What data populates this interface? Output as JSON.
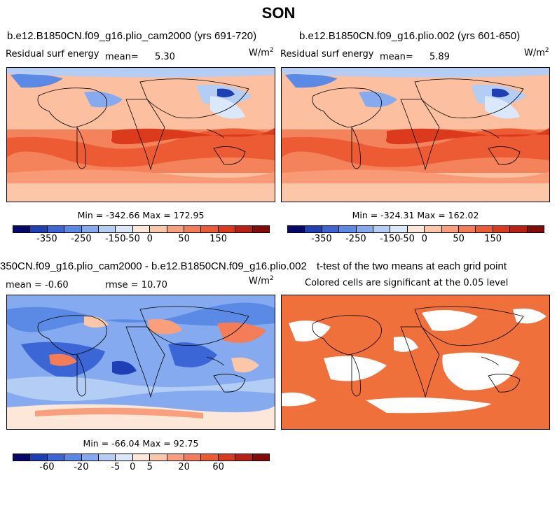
{
  "title": "SON",
  "units": {
    "base": "W/m",
    "exp": "2"
  },
  "panels": {
    "p1": {
      "title": "b.e12.B1850CN.f09_g16.plio_cam2000 (yrs 691-720)",
      "subtitle": "Residual surf energy",
      "mean_label": "mean=",
      "mean_value": "5.30"
    },
    "p2": {
      "title": "b.e12.B1850CN.f09_g16.plio.002 (yrs 601-650)",
      "subtitle": "Residual surf energy",
      "mean_label": "mean=",
      "mean_value": "5.89"
    },
    "p3": {
      "title": "350CN.f09_g16.plio_cam2000 - b.e12.B1850CN.f09_g16.plio.002",
      "mean_text": "mean = -0.60",
      "rmse_text": "rmse = 10.70"
    },
    "p4": {
      "title": "t-test of the two means at each grid point",
      "subtitle": "Colored cells are significant at the 0.05 level"
    }
  },
  "minmax": {
    "top_left": "Min = -342.66  Max = 172.95",
    "top_right": "Min = -324.31  Max = 162.02",
    "bottom_left": "Min = -66.04  Max = 92.75"
  },
  "colorbars": {
    "top": {
      "labels": [
        "-350",
        "-250",
        "-150",
        "-50",
        "0",
        "50",
        "150"
      ]
    },
    "bottom": {
      "labels": [
        "-60",
        "-20",
        "-5",
        "0",
        "5",
        "20",
        "60"
      ]
    },
    "colors": [
      "#08086b",
      "#1f3fb4",
      "#3c66d6",
      "#5b8ae6",
      "#86aaef",
      "#b3cdf5",
      "#dbe8fb",
      "#fde7d8",
      "#fcc7a8",
      "#fa9f7c",
      "#f47c56",
      "#ec5b34",
      "#dc3a1c",
      "#b91f12",
      "#830c0a"
    ]
  },
  "t_test_color": "#f0703c"
}
